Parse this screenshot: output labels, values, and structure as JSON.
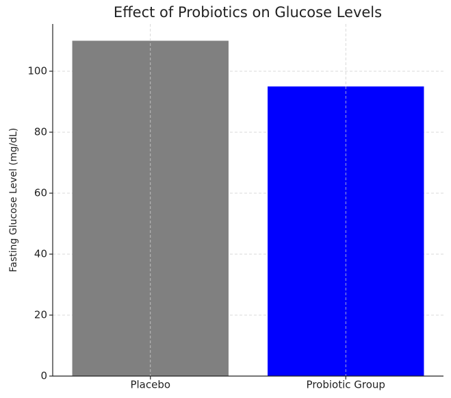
{
  "chart_data": {
    "type": "bar",
    "title": "Effect of Probiotics on Glucose Levels",
    "y_label": "Fasting Glucose Level (mg/dL)",
    "categories": [
      "Placebo",
      "Probiotic Group"
    ],
    "values": [
      110,
      95
    ],
    "colors": [
      "#808080",
      "#0000ff"
    ],
    "ylim": [
      0,
      115.5
    ],
    "yticks": [
      0,
      20,
      40,
      60,
      80,
      100
    ],
    "grid": true
  }
}
